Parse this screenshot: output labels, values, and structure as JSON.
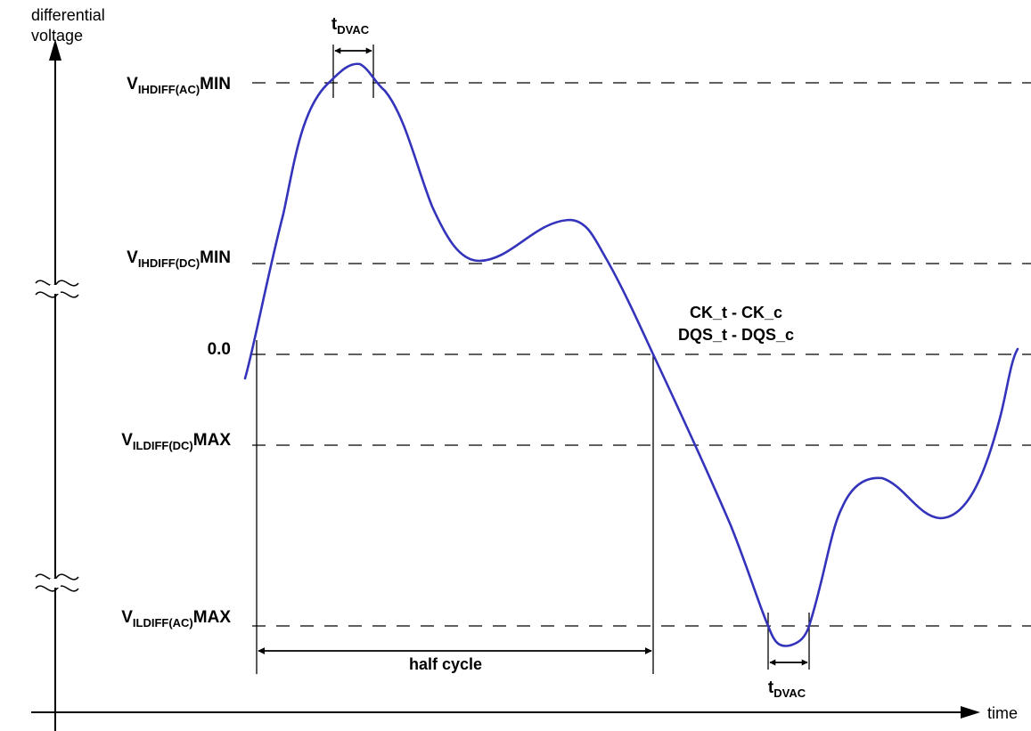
{
  "axes": {
    "y_title_line1": "differential",
    "y_title_line2": "voltage",
    "x_title": "time"
  },
  "levels": {
    "vihdiff_ac_min": {
      "v": "V",
      "sub": "IHDIFF(AC)",
      "suffix": "MIN"
    },
    "vihdiff_dc_min": {
      "v": "V",
      "sub": "IHDIFF(DC)",
      "suffix": "MIN"
    },
    "zero": "0.0",
    "vildiff_dc_max": {
      "v": "V",
      "sub": "ILDIFF(DC)",
      "suffix": "MAX"
    },
    "vildiff_ac_max": {
      "v": "V",
      "sub": "ILDIFF(AC)",
      "suffix": "MAX"
    }
  },
  "annotations": {
    "tdvac_top": {
      "t": "t",
      "sub": "DVAC"
    },
    "tdvac_bottom": {
      "t": "t",
      "sub": "DVAC"
    },
    "signal_line1": "CK_t - CK_c",
    "signal_line2": "DQS_t - DQS_c",
    "half_cycle": "half cycle"
  },
  "colors": {
    "signal": "#3333bb",
    "lines": "#000000"
  }
}
